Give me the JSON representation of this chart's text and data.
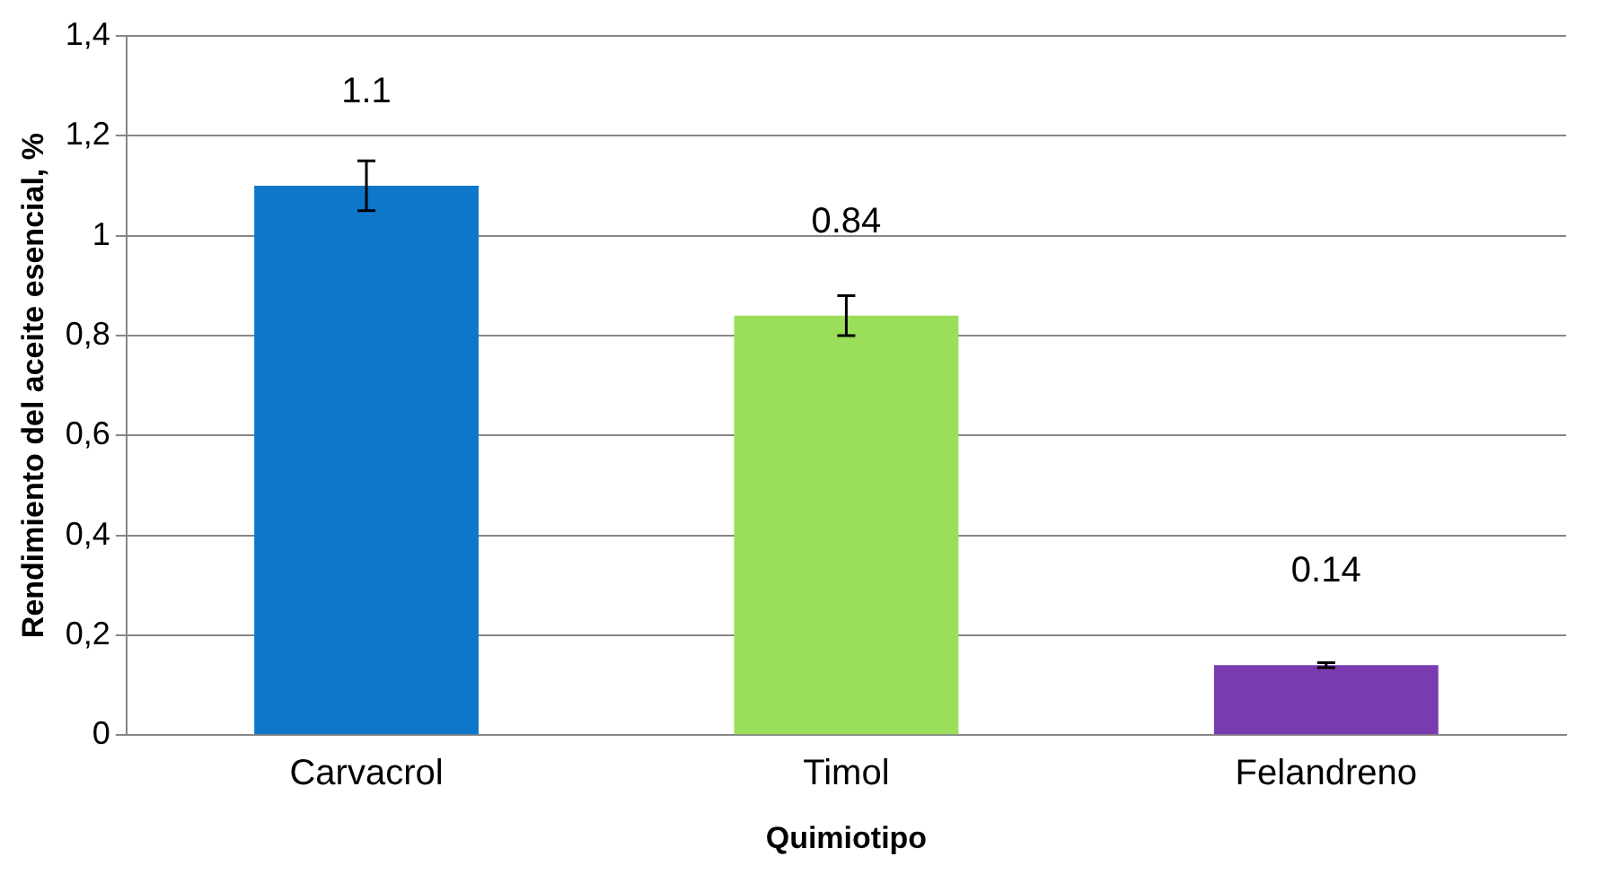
{
  "chart_data": {
    "type": "bar",
    "xlabel": "Quimiotipo",
    "ylabel": "Rendimiento del aceite esencial, %",
    "categories": [
      "Carvacrol",
      "Timol",
      "Felandreno"
    ],
    "values": [
      1.1,
      0.84,
      0.14
    ],
    "colors": [
      "#0e77ca",
      "#9ade5a",
      "#7a3bb0"
    ],
    "errors": [
      0.05,
      0.04,
      0.005
    ],
    "data_labels": true,
    "ylim": [
      0,
      1.4
    ],
    "yticks": [
      0,
      {
        "value": 0.2,
        "label": "0,2"
      },
      {
        "value": 0.4,
        "label": "0,4"
      },
      {
        "value": 0.6,
        "label": "0,6"
      },
      {
        "value": 0.8,
        "label": "0,8"
      },
      1,
      {
        "value": 1.2,
        "label": "1,2"
      },
      {
        "value": 1.4,
        "label": "1,4"
      }
    ],
    "grid": "y",
    "legend": false
  }
}
